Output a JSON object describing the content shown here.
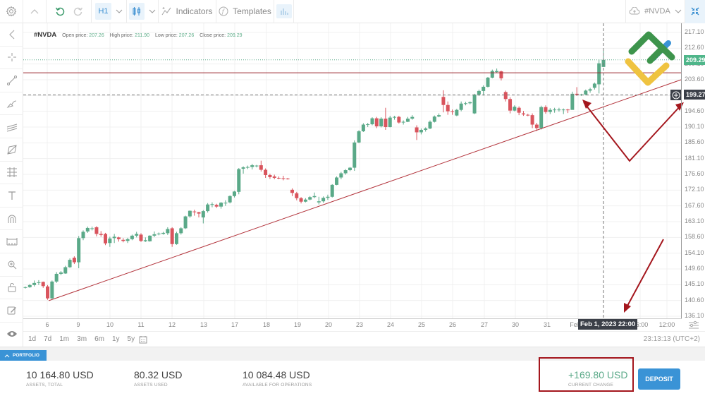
{
  "toolbar": {
    "settings_icon": "gear-icon",
    "collapse_icon": "chevron-up-icon",
    "undo_icon": "undo-icon",
    "redo_icon": "redo-icon",
    "timeframe": "H1",
    "chart_type_icon": "candlestick-icon",
    "indicators_label": "Indicators",
    "templates_label": "Templates",
    "volume_icon": "bar-chart-icon",
    "symbol": "#NVDA",
    "fullscreen_icon": "fullscreen-icon"
  },
  "legend": {
    "symbol": "#NVDA",
    "open_label": "Open price:",
    "open": "207.26",
    "high_label": "High price:",
    "high": "211.90",
    "low_label": "Low price:",
    "low": "207.26",
    "close_label": "Close price:",
    "close": "209.29"
  },
  "sidebar": {
    "items": [
      "back-icon",
      "crosshair-icon",
      "trendline-icon",
      "brush-icon",
      "channel-icon",
      "pattern-icon",
      "fibonacci-icon",
      "text-icon",
      "magnet-icon",
      "measure-icon",
      "zoom-in-icon",
      "lock-icon",
      "edit-icon",
      "eye-icon"
    ]
  },
  "price_axis": {
    "ticks": [
      "217.10",
      "212.60",
      "209.10",
      "203.60",
      "199.10",
      "194.60",
      "190.10",
      "185.60",
      "181.10",
      "176.60",
      "172.10",
      "167.60",
      "163.10",
      "158.60",
      "154.10",
      "149.60",
      "145.10",
      "140.60",
      "136.10"
    ],
    "current_price": "209.29",
    "crosshair_price": "199.27",
    "colors": {
      "current": "#4fb68a",
      "crosshair": "#3b3f48"
    }
  },
  "time_axis": {
    "ticks": [
      "6",
      "9",
      "10",
      "11",
      "12",
      "13",
      "17",
      "18",
      "19",
      "20",
      "23",
      "24",
      "25",
      "26",
      "27",
      "30",
      "31",
      "Feb",
      "06:00",
      "12:00"
    ],
    "crosshair_time": "Feb 1, 2023 22:00"
  },
  "periods": [
    "1d",
    "7d",
    "1m",
    "3m",
    "6m",
    "1y",
    "5y"
  ],
  "calendar_icon": "calendar-icon",
  "clock": "23:13:13 (UTC+2)",
  "portfolio": {
    "tab_label": "PORTFOLIO",
    "assets_total": {
      "value": "10 164.80 USD",
      "label": "ASSETS, TOTAL"
    },
    "assets_used": {
      "value": "80.32 USD",
      "label": "ASSETS USED"
    },
    "available": {
      "value": "10 084.48 USD",
      "label": "AVAILABLE FOR OPERATIONS"
    },
    "current_change": {
      "value": "+169.80 USD",
      "label": "CURRENT CHANGE"
    },
    "deposit_label": "DEPOSIT"
  },
  "colors": {
    "up": "#5aa988",
    "down": "#d9545d",
    "accent": "#3a93d6",
    "annotation": "#a4161d"
  },
  "chart_data": {
    "type": "candlestick",
    "title": "#NVDA H1",
    "ylim": [
      136.1,
      217.1
    ],
    "x_labels": [
      "6",
      "9",
      "10",
      "11",
      "12",
      "13",
      "17",
      "18",
      "19",
      "20",
      "23",
      "24",
      "25",
      "26",
      "27",
      "30",
      "31",
      "Feb",
      "06:00",
      "12:00"
    ],
    "last": {
      "open": 207.26,
      "high": 211.9,
      "low": 207.26,
      "close": 209.29
    },
    "candles": [
      [
        144.3,
        144.6,
        144.0,
        144.4
      ],
      [
        144.4,
        145.3,
        144.2,
        145.0
      ],
      [
        145.0,
        146.3,
        144.6,
        145.6
      ],
      [
        145.6,
        146.4,
        145.0,
        145.8
      ],
      [
        145.9,
        146.0,
        144.2,
        144.7
      ],
      [
        144.6,
        145.0,
        140.8,
        141.2
      ],
      [
        141.2,
        146.3,
        141.0,
        146.0
      ],
      [
        146.0,
        148.7,
        145.6,
        148.2
      ],
      [
        148.2,
        149.0,
        147.8,
        148.6
      ],
      [
        148.3,
        150.5,
        148.2,
        150.1
      ],
      [
        150.1,
        152.6,
        149.9,
        152.2
      ],
      [
        152.8,
        153.2,
        151.0,
        151.5
      ],
      [
        151.5,
        159.0,
        149.8,
        158.4
      ],
      [
        158.4,
        160.6,
        157.8,
        160.2
      ],
      [
        160.3,
        161.7,
        159.9,
        161.3
      ],
      [
        161.2,
        161.7,
        160.6,
        161.2
      ],
      [
        161.5,
        161.8,
        158.9,
        159.6
      ],
      [
        159.6,
        160.4,
        158.8,
        159.3
      ],
      [
        159.6,
        159.9,
        156.4,
        156.9
      ],
      [
        157.0,
        158.8,
        155.9,
        158.3
      ],
      [
        158.4,
        159.6,
        157.0,
        158.8
      ],
      [
        158.6,
        158.8,
        157.4,
        158.1
      ],
      [
        157.9,
        158.4,
        157.2,
        157.6
      ],
      [
        157.6,
        158.5,
        157.0,
        158.1
      ],
      [
        158.1,
        159.4,
        157.8,
        159.1
      ],
      [
        159.1,
        160.2,
        158.6,
        159.6
      ],
      [
        159.4,
        159.8,
        157.3,
        157.6
      ],
      [
        157.5,
        158.6,
        157.3,
        157.8
      ],
      [
        157.5,
        159.2,
        157.4,
        159.1
      ],
      [
        159.1,
        160.3,
        158.7,
        159.5
      ],
      [
        159.5,
        160.0,
        159.2,
        159.7
      ],
      [
        159.6,
        160.2,
        159.4,
        159.9
      ],
      [
        159.8,
        161.5,
        159.3,
        161.0
      ],
      [
        161.2,
        161.5,
        155.9,
        156.7
      ],
      [
        156.7,
        160.2,
        156.5,
        159.8
      ],
      [
        159.8,
        161.5,
        159.4,
        161.2
      ],
      [
        161.2,
        164.8,
        161.0,
        164.6
      ],
      [
        164.6,
        166.3,
        164.2,
        166.2
      ],
      [
        166.0,
        166.5,
        164.8,
        165.8
      ],
      [
        165.8,
        165.9,
        164.3,
        165.4
      ],
      [
        164.3,
        166.4,
        162.6,
        166.1
      ],
      [
        166.1,
        168.4,
        165.7,
        168.0
      ],
      [
        168.0,
        168.6,
        167.2,
        168.1
      ],
      [
        167.9,
        168.2,
        167.0,
        167.4
      ],
      [
        167.4,
        168.7,
        166.8,
        168.5
      ],
      [
        168.5,
        169.2,
        167.6,
        168.5
      ],
      [
        168.6,
        170.6,
        168.3,
        170.4
      ],
      [
        170.4,
        171.9,
        170.0,
        171.7
      ],
      [
        171.6,
        178.4,
        170.9,
        178.1
      ],
      [
        178.2,
        178.9,
        176.8,
        178.6
      ],
      [
        178.6,
        179.1,
        178.1,
        178.7
      ],
      [
        178.7,
        179.6,
        178.0,
        179.2
      ],
      [
        179.0,
        179.3,
        178.6,
        179.1
      ],
      [
        179.2,
        180.5,
        177.4,
        177.9
      ],
      [
        177.9,
        178.3,
        175.6,
        176.4
      ],
      [
        176.4,
        176.8,
        175.3,
        175.8
      ],
      [
        176.0,
        176.5,
        175.2,
        175.6
      ],
      [
        175.6,
        176.0,
        175.2,
        175.5
      ],
      [
        175.5,
        176.2,
        174.9,
        175.4
      ],
      [
        175.4,
        175.6,
        175.1,
        175.3
      ],
      [
        172.2,
        172.6,
        170.4,
        171.3
      ],
      [
        171.2,
        171.6,
        169.2,
        169.8
      ],
      [
        169.8,
        170.1,
        168.3,
        168.8
      ],
      [
        168.8,
        169.8,
        168.6,
        169.4
      ],
      [
        169.4,
        170.4,
        169.2,
        170.1
      ],
      [
        170.1,
        171.4,
        169.8,
        170.4
      ],
      [
        168.6,
        170.2,
        168.0,
        168.9
      ],
      [
        168.9,
        170.3,
        168.5,
        169.9
      ],
      [
        169.9,
        170.8,
        169.3,
        170.2
      ],
      [
        170.2,
        173.8,
        170.0,
        173.6
      ],
      [
        173.6,
        176.0,
        173.5,
        175.7
      ],
      [
        175.7,
        177.3,
        175.2,
        176.9
      ],
      [
        176.9,
        178.1,
        176.5,
        177.8
      ],
      [
        177.8,
        178.7,
        177.5,
        178.5
      ],
      [
        178.5,
        186.3,
        177.6,
        185.7
      ],
      [
        185.7,
        189.2,
        185.5,
        188.9
      ],
      [
        188.9,
        191.2,
        188.7,
        190.8
      ],
      [
        190.8,
        191.3,
        190.1,
        190.9
      ],
      [
        190.9,
        192.9,
        190.6,
        192.6
      ],
      [
        192.6,
        193.0,
        189.8,
        190.3
      ],
      [
        190.3,
        192.9,
        190.0,
        192.5
      ],
      [
        192.5,
        195.6,
        189.3,
        190.1
      ],
      [
        190.1,
        193.3,
        190.0,
        192.8
      ],
      [
        192.8,
        193.3,
        192.2,
        193.0
      ],
      [
        193.0,
        193.3,
        191.1,
        191.4
      ],
      [
        191.4,
        192.0,
        190.8,
        191.6
      ],
      [
        191.6,
        193.0,
        191.5,
        192.5
      ],
      [
        192.5,
        193.5,
        192.2,
        193.0
      ],
      [
        190.0,
        190.6,
        186.4,
        188.6
      ],
      [
        188.6,
        189.7,
        188.0,
        189.3
      ],
      [
        189.3,
        190.0,
        188.8,
        189.7
      ],
      [
        189.7,
        192.0,
        189.5,
        191.6
      ],
      [
        191.6,
        193.4,
        191.4,
        193.1
      ],
      [
        193.1,
        194.0,
        192.9,
        193.5
      ],
      [
        198.7,
        200.6,
        194.3,
        196.4
      ],
      [
        196.4,
        197.4,
        193.6,
        194.6
      ],
      [
        194.6,
        195.1,
        193.6,
        194.4
      ],
      [
        193.4,
        195.3,
        193.2,
        195.0
      ],
      [
        195.0,
        197.4,
        194.6,
        196.8
      ],
      [
        196.8,
        197.3,
        196.3,
        196.9
      ],
      [
        196.9,
        197.4,
        196.6,
        197.2
      ],
      [
        194.0,
        199.6,
        193.8,
        199.4
      ],
      [
        199.4,
        200.8,
        199.0,
        200.4
      ],
      [
        200.4,
        202.0,
        199.1,
        201.6
      ],
      [
        201.6,
        204.4,
        201.4,
        204.2
      ],
      [
        204.2,
        206.5,
        204.0,
        206.1
      ],
      [
        205.8,
        206.8,
        205.6,
        206.1
      ],
      [
        206.0,
        206.2,
        203.4,
        204.0
      ],
      [
        200.1,
        200.5,
        197.4,
        198.1
      ],
      [
        198.1,
        198.6,
        194.0,
        194.8
      ],
      [
        194.8,
        196.3,
        194.6,
        195.9
      ],
      [
        195.6,
        196.0,
        193.5,
        194.2
      ],
      [
        194.0,
        194.7,
        193.3,
        193.7
      ],
      [
        193.6,
        193.9,
        193.2,
        193.4
      ],
      [
        193.5,
        194.0,
        189.8,
        190.8
      ],
      [
        190.8,
        191.3,
        189.0,
        189.8
      ],
      [
        189.8,
        196.2,
        189.4,
        195.8
      ],
      [
        195.8,
        196.3,
        193.9,
        194.4
      ],
      [
        194.4,
        195.5,
        193.8,
        195.0
      ],
      [
        195.0,
        195.6,
        194.2,
        195.1
      ],
      [
        195.1,
        195.6,
        194.5,
        195.1
      ],
      [
        195.1,
        195.4,
        193.8,
        195.1
      ],
      [
        195.1,
        195.3,
        194.1,
        195.0
      ],
      [
        195.0,
        200.2,
        197.7,
        199.6
      ],
      [
        199.6,
        201.5,
        199.0,
        199.3
      ],
      [
        199.2,
        199.6,
        199.0,
        199.4
      ],
      [
        199.4,
        200.8,
        199.2,
        200.5
      ],
      [
        200.5,
        201.3,
        199.9,
        200.9
      ],
      [
        201.3,
        202.8,
        200.8,
        202.5
      ],
      [
        202.3,
        209.4,
        199.7,
        208.3
      ],
      [
        207.26,
        211.9,
        207.26,
        209.29
      ]
    ],
    "drawings": {
      "horizontal_resistance": 205.6,
      "trendline": {
        "from": {
          "x": "Jan 6",
          "y": 141.0
        },
        "to": {
          "x": "Feb 2 +",
          "y": 204.0
        }
      },
      "crosshair": {
        "price": 199.27,
        "time": "Feb 1, 2023 22:00"
      }
    }
  }
}
